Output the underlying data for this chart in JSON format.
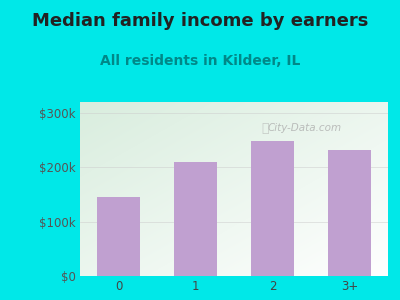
{
  "title": "Median family income by earners",
  "subtitle": "All residents in Kildeer, IL",
  "categories": [
    "0",
    "1",
    "2",
    "3+"
  ],
  "values": [
    145000,
    210000,
    248000,
    232000
  ],
  "bar_color": "#c0a0d0",
  "title_color": "#222222",
  "subtitle_color": "#008888",
  "bg_color": "#00e8e8",
  "plot_bg_color_tl": "#d8eedd",
  "plot_bg_color_br": "#ffffff",
  "yticks": [
    0,
    100000,
    200000,
    300000
  ],
  "ytick_labels": [
    "$0",
    "$100k",
    "$200k",
    "$300k"
  ],
  "ylim": [
    0,
    320000
  ],
  "watermark": "City-Data.com",
  "title_fontsize": 13,
  "subtitle_fontsize": 10,
  "tick_fontsize": 8.5
}
